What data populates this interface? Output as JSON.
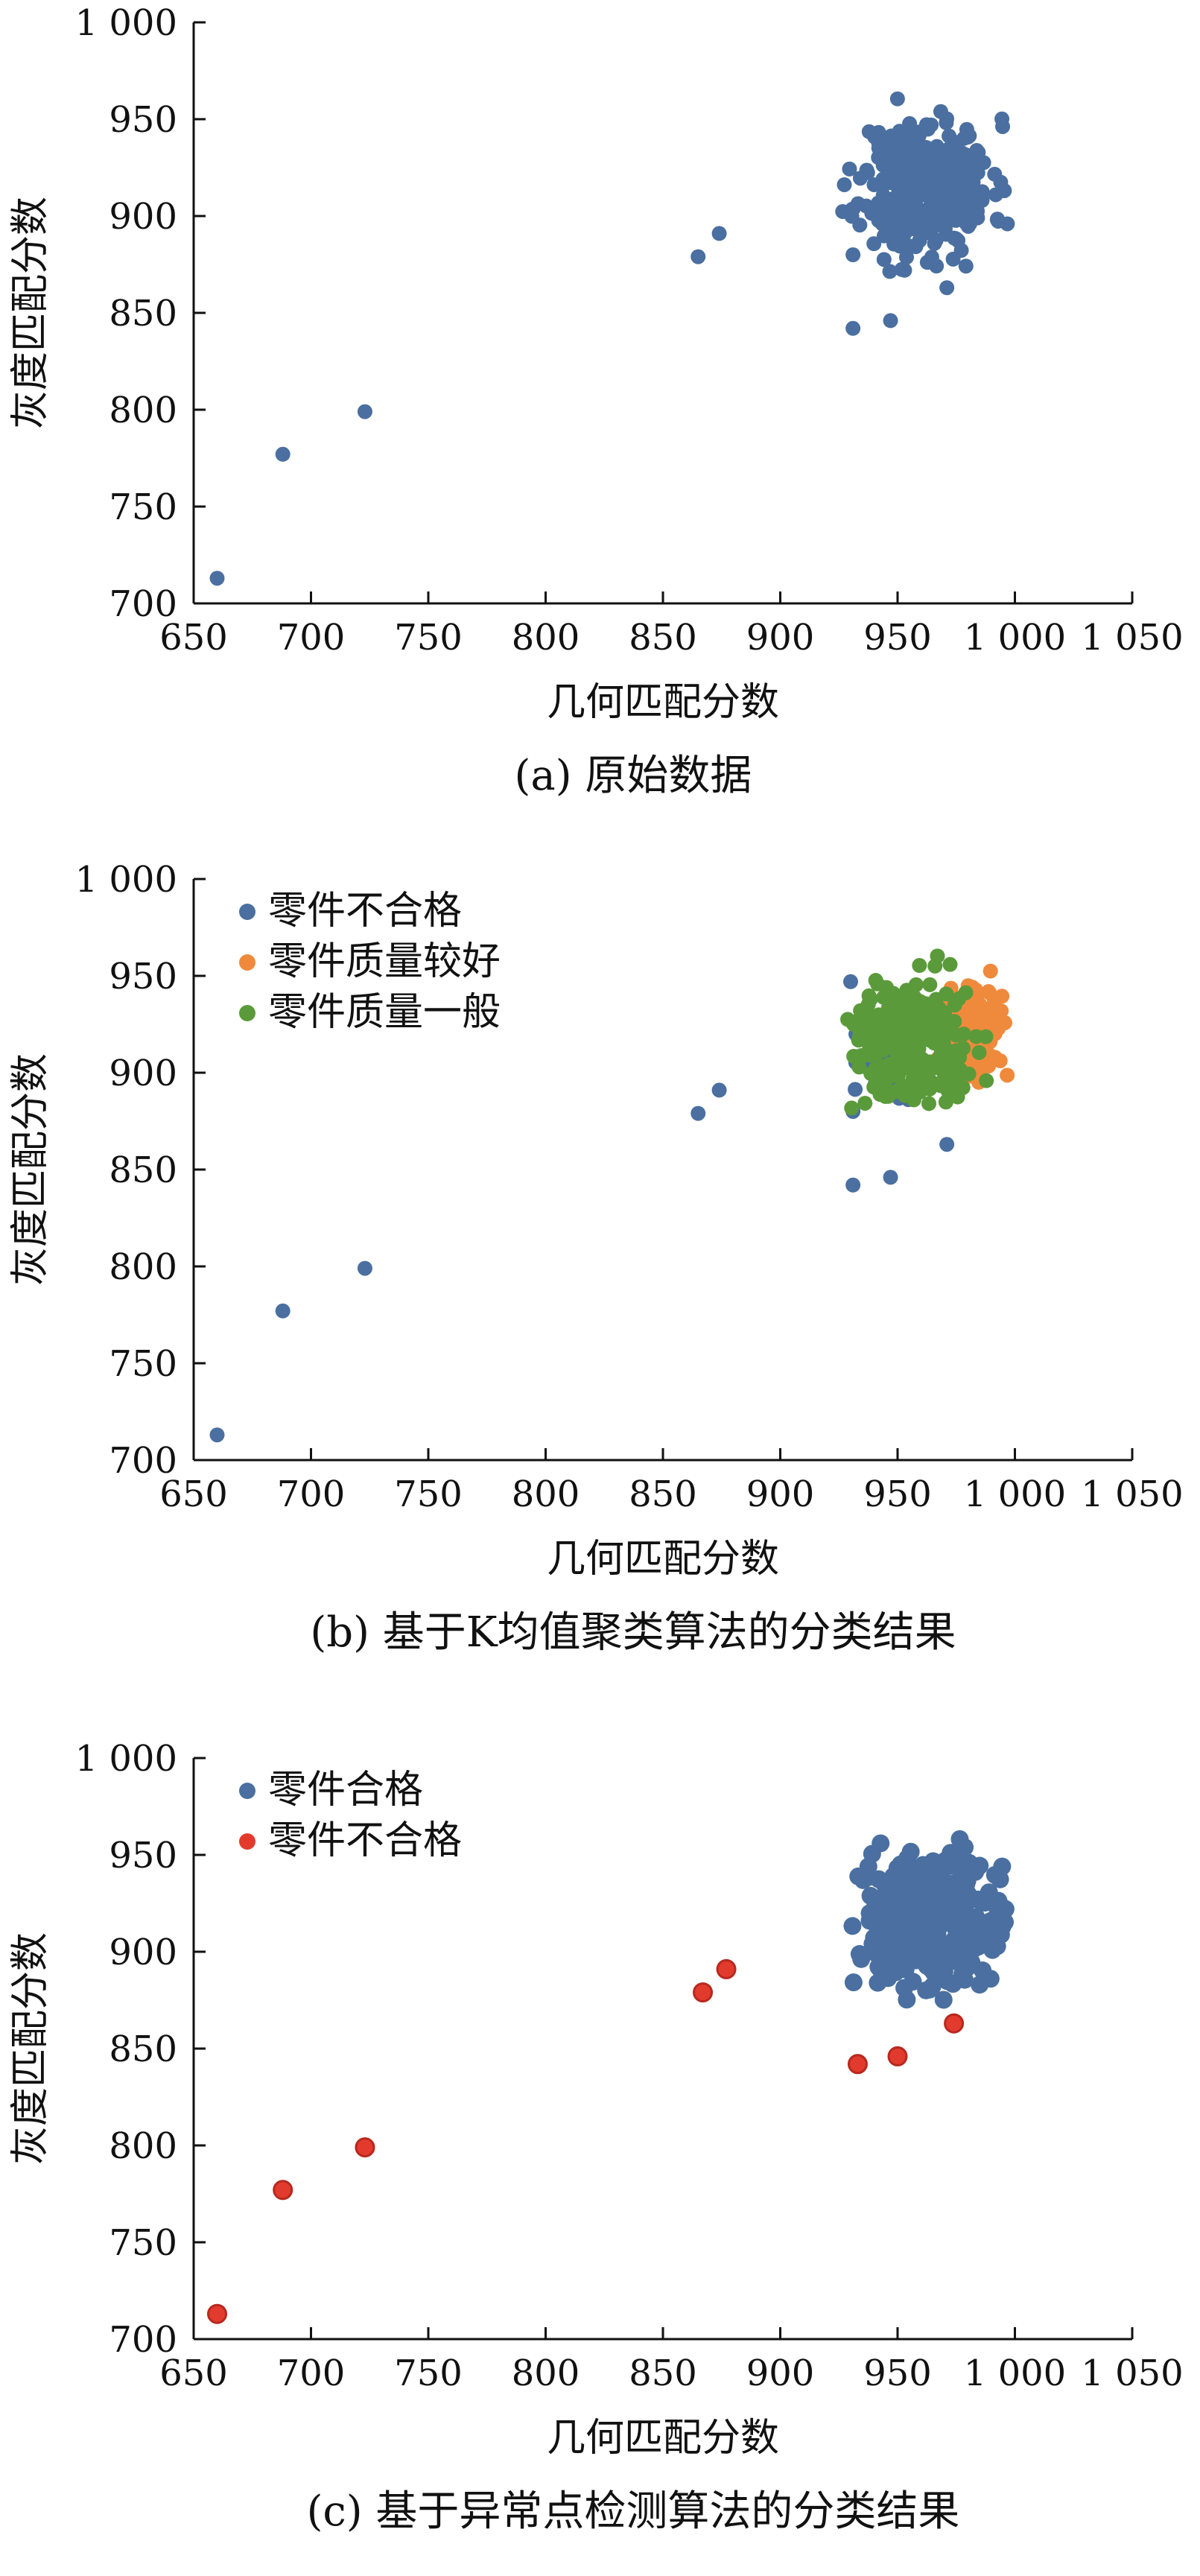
{
  "chart_data": [
    {
      "type": "scatter",
      "caption": "(a) 原始数据",
      "xlabel": "几何匹配分数",
      "ylabel": "灰度匹配分数",
      "xlim": [
        650,
        1050
      ],
      "ylim": [
        700,
        1000
      ],
      "xticks": [
        "650",
        "700",
        "750",
        "800",
        "850",
        "900",
        "950",
        "1 000",
        "1 050"
      ],
      "yticks": [
        "700",
        "750",
        "800",
        "850",
        "900",
        "950",
        "1 000"
      ],
      "legend": "none",
      "series": [
        {
          "color": "#4a6fa0",
          "outliers": [
            [
              660,
              713
            ],
            [
              688,
              777
            ],
            [
              723,
              799
            ],
            [
              865,
              879
            ],
            [
              874,
              891
            ],
            [
              931,
              842
            ],
            [
              947,
              846
            ],
            [
              971,
              863
            ],
            [
              931,
              880
            ],
            [
              953,
              872
            ]
          ],
          "cluster": {
            "center": [
              962,
              915
            ],
            "x_range": [
              925,
              998
            ],
            "y_range": [
              870,
              962
            ],
            "count": 360,
            "seed": 11
          }
        }
      ]
    },
    {
      "type": "scatter",
      "caption": "(b) 基于K均值聚类算法的分类结果",
      "xlabel": "几何匹配分数",
      "ylabel": "灰度匹配分数",
      "xlim": [
        650,
        1050
      ],
      "ylim": [
        700,
        1000
      ],
      "xticks": [
        "650",
        "700",
        "750",
        "800",
        "850",
        "900",
        "950",
        "1 000",
        "1 050"
      ],
      "yticks": [
        "700",
        "750",
        "800",
        "850",
        "900",
        "950",
        "1 000"
      ],
      "legend": "top-left",
      "series": [
        {
          "name": "零件不合格",
          "color": "#4a6fa0",
          "outliers": [
            [
              660,
              713
            ],
            [
              688,
              777
            ],
            [
              723,
              799
            ],
            [
              865,
              879
            ],
            [
              874,
              891
            ],
            [
              931,
              842
            ],
            [
              947,
              846
            ],
            [
              971,
              863
            ],
            [
              931,
              880
            ],
            [
              930,
              947
            ]
          ],
          "cluster": {
            "center": [
              948,
              905
            ],
            "x_range": [
              925,
              975
            ],
            "y_range": [
              872,
              930
            ],
            "count": 40,
            "seed": 21
          }
        },
        {
          "name": "零件质量较好",
          "color": "#ef8a3c",
          "outliers": [],
          "cluster": {
            "center": [
              982,
              920
            ],
            "x_range": [
              965,
              998
            ],
            "y_range": [
              890,
              955
            ],
            "count": 120,
            "seed": 33
          }
        },
        {
          "name": "零件质量一般",
          "color": "#5a9a3a",
          "outliers": [],
          "cluster": {
            "center": [
              955,
              918
            ],
            "x_range": [
              928,
              995
            ],
            "y_range": [
              880,
              963
            ],
            "count": 260,
            "seed": 45
          }
        }
      ]
    },
    {
      "type": "scatter",
      "caption": "(c) 基于异常点检测算法的分类结果",
      "xlabel": "几何匹配分数",
      "ylabel": "灰度匹配分数",
      "xlim": [
        650,
        1050
      ],
      "ylim": [
        700,
        1000
      ],
      "xticks": [
        "650",
        "700",
        "750",
        "800",
        "850",
        "900",
        "950",
        "1 000",
        "1 050"
      ],
      "yticks": [
        "700",
        "750",
        "800",
        "850",
        "900",
        "950",
        "1 000"
      ],
      "legend": "top-left",
      "series": [
        {
          "name": "零件合格",
          "color": "#4a6fa0",
          "outliers": [],
          "cluster": {
            "center": [
              962,
              915
            ],
            "x_range": [
              925,
              1000
            ],
            "y_range": [
              872,
              965
            ],
            "count": 360,
            "seed": 57
          }
        },
        {
          "name": "零件不合格",
          "color": "#e23b2e",
          "outliers": [
            [
              660,
              713
            ],
            [
              688,
              777
            ],
            [
              723,
              799
            ],
            [
              867,
              879
            ],
            [
              877,
              891
            ],
            [
              933,
              842
            ],
            [
              950,
              846
            ],
            [
              974,
              863
            ]
          ],
          "cluster": null
        }
      ]
    }
  ]
}
